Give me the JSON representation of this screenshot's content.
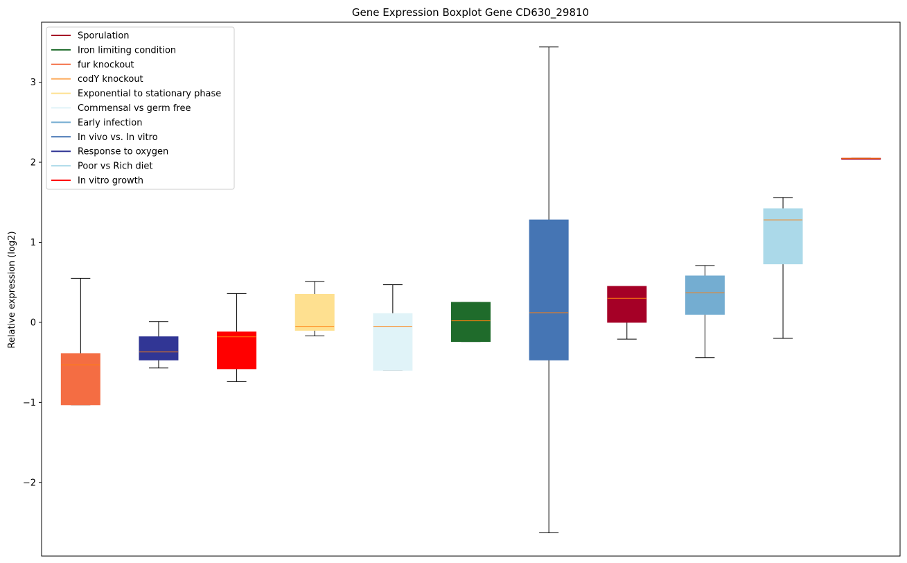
{
  "chart_data": {
    "type": "boxplot",
    "title": "Gene Expression Boxplot Gene CD630_29810",
    "xlabel": "",
    "ylabel": "Relative expression (log2)",
    "ylim": [
      -2.92,
      3.75
    ],
    "yticks": [
      -2,
      -1,
      0,
      1,
      2,
      3
    ],
    "ytick_labels": [
      "−2",
      "−1",
      "0",
      "1",
      "2",
      "3"
    ],
    "xlim": [
      0.5,
      11.5
    ],
    "grid": false,
    "legend_position": "top-left",
    "median_color": "#ff7f0e",
    "whisker_color": "#000000",
    "legend": [
      {
        "label": "Sporulation",
        "color": "#a50026"
      },
      {
        "label": "Iron limiting condition",
        "color": "#1f6b2b"
      },
      {
        "label": "fur knockout",
        "color": "#f46d43"
      },
      {
        "label": "codY knockout",
        "color": "#fdae61"
      },
      {
        "label": "Exponential to stationary phase",
        "color": "#fee090"
      },
      {
        "label": "Commensal vs germ free",
        "color": "#e0f3f8"
      },
      {
        "label": "Early infection",
        "color": "#74add1"
      },
      {
        "label": "In vivo vs. In vitro",
        "color": "#4575b4"
      },
      {
        "label": "Response to oxygen",
        "color": "#313695"
      },
      {
        "label": "Poor vs Rich diet",
        "color": "#abd9e9"
      },
      {
        "label": "In vitro growth",
        "color": "#ff0000"
      }
    ],
    "boxes": [
      {
        "group": "fur knockout",
        "color": "#f46d43",
        "whislo": -1.03,
        "q1": -1.03,
        "med": -0.53,
        "q3": -0.39,
        "whishi": 0.55
      },
      {
        "group": "Response to oxygen",
        "color": "#313695",
        "whislo": -0.57,
        "q1": -0.47,
        "med": -0.37,
        "q3": -0.18,
        "whishi": 0.01
      },
      {
        "group": "In vitro growth",
        "color": "#ff0000",
        "whislo": -0.74,
        "q1": -0.58,
        "med": -0.18,
        "q3": -0.12,
        "whishi": 0.36
      },
      {
        "group": "Exponential to stationary phase",
        "color": "#fee090",
        "whislo": -0.17,
        "q1": -0.1,
        "med": -0.05,
        "q3": 0.35,
        "whishi": 0.51
      },
      {
        "group": "Commensal vs germ free",
        "color": "#e0f3f8",
        "whislo": -0.6,
        "q1": -0.6,
        "med": -0.05,
        "q3": 0.11,
        "whishi": 0.47
      },
      {
        "group": "Iron limiting condition",
        "color": "#1f6b2b",
        "whislo": -0.24,
        "q1": -0.24,
        "med": 0.02,
        "q3": 0.25,
        "whishi": 0.25
      },
      {
        "group": "In vivo vs. In vitro",
        "color": "#4575b4",
        "whislo": -2.63,
        "q1": -0.47,
        "med": 0.12,
        "q3": 1.28,
        "whishi": 3.44
      },
      {
        "group": "Sporulation",
        "color": "#a50026",
        "whislo": -0.21,
        "q1": 0.0,
        "med": 0.3,
        "q3": 0.45,
        "whishi": 0.45
      },
      {
        "group": "Early infection",
        "color": "#74add1",
        "whislo": -0.44,
        "q1": 0.1,
        "med": 0.37,
        "q3": 0.58,
        "whishi": 0.71
      },
      {
        "group": "Poor vs Rich diet",
        "color": "#abd9e9",
        "whislo": -0.2,
        "q1": 0.73,
        "med": 1.28,
        "q3": 1.42,
        "whishi": 1.56
      },
      {
        "group": "Sporulation",
        "color": "#a50026",
        "whislo": 2.05,
        "q1": 2.05,
        "med": 2.05,
        "q3": 2.05,
        "whishi": 2.05
      }
    ]
  }
}
